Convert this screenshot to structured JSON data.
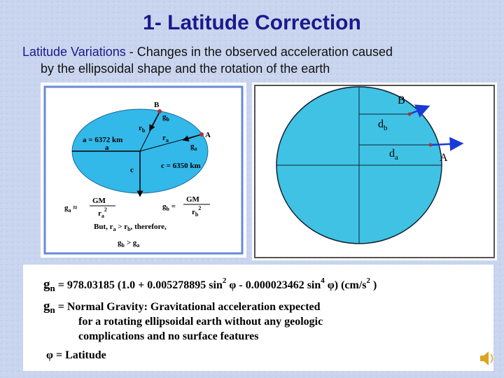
{
  "title": "1- Latitude Correction",
  "intro": {
    "term": "Latitude Variations",
    "lines": [
      "- Changes in the observed acceleration caused",
      "by the ellipsoidal shape and the rotation of the earth"
    ]
  },
  "left_figure": {
    "point_b": "B",
    "g_b": [
      "g",
      "b"
    ],
    "r_b": [
      "r",
      "b"
    ],
    "r_a": [
      "r",
      "a"
    ],
    "point_a": "A",
    "g_a": [
      "g",
      "a"
    ],
    "a_label": "a = 6372 km",
    "a": "a",
    "c": "c",
    "c_label": "c = 6350 km",
    "eq_a": {
      "lhs": [
        "g",
        "a",
        "≈"
      ],
      "num": "GM",
      "den": [
        "r",
        "a",
        "2"
      ]
    },
    "eq_b": {
      "lhs": [
        "g",
        "b",
        "="
      ],
      "num": "GM",
      "den": [
        "r",
        "b",
        "2"
      ]
    },
    "but": [
      "But, r",
      "a",
      " > r",
      "b",
      ", therefore,"
    ],
    "result": [
      "g",
      "b",
      " > g",
      "a"
    ]
  },
  "right_figure": {
    "point_b": "B",
    "d_b": [
      "d",
      "b"
    ],
    "d_a": [
      "d",
      "a"
    ],
    "point_a": "A"
  },
  "formula_box": {
    "equation": [
      "g",
      "n",
      " = 978.03185 (1.0 + 0.005278895 sin",
      "2",
      " φ - 0.000023462 sin",
      "4",
      " φ)  (cm/s",
      "2",
      " )"
    ],
    "definition": [
      "g",
      "n",
      " = Normal Gravity: Gravitational acceleration expected",
      "for a rotating ellipsoidal earth without any geologic",
      "complications and no surface features"
    ],
    "phi": "φ = Latitude"
  }
}
